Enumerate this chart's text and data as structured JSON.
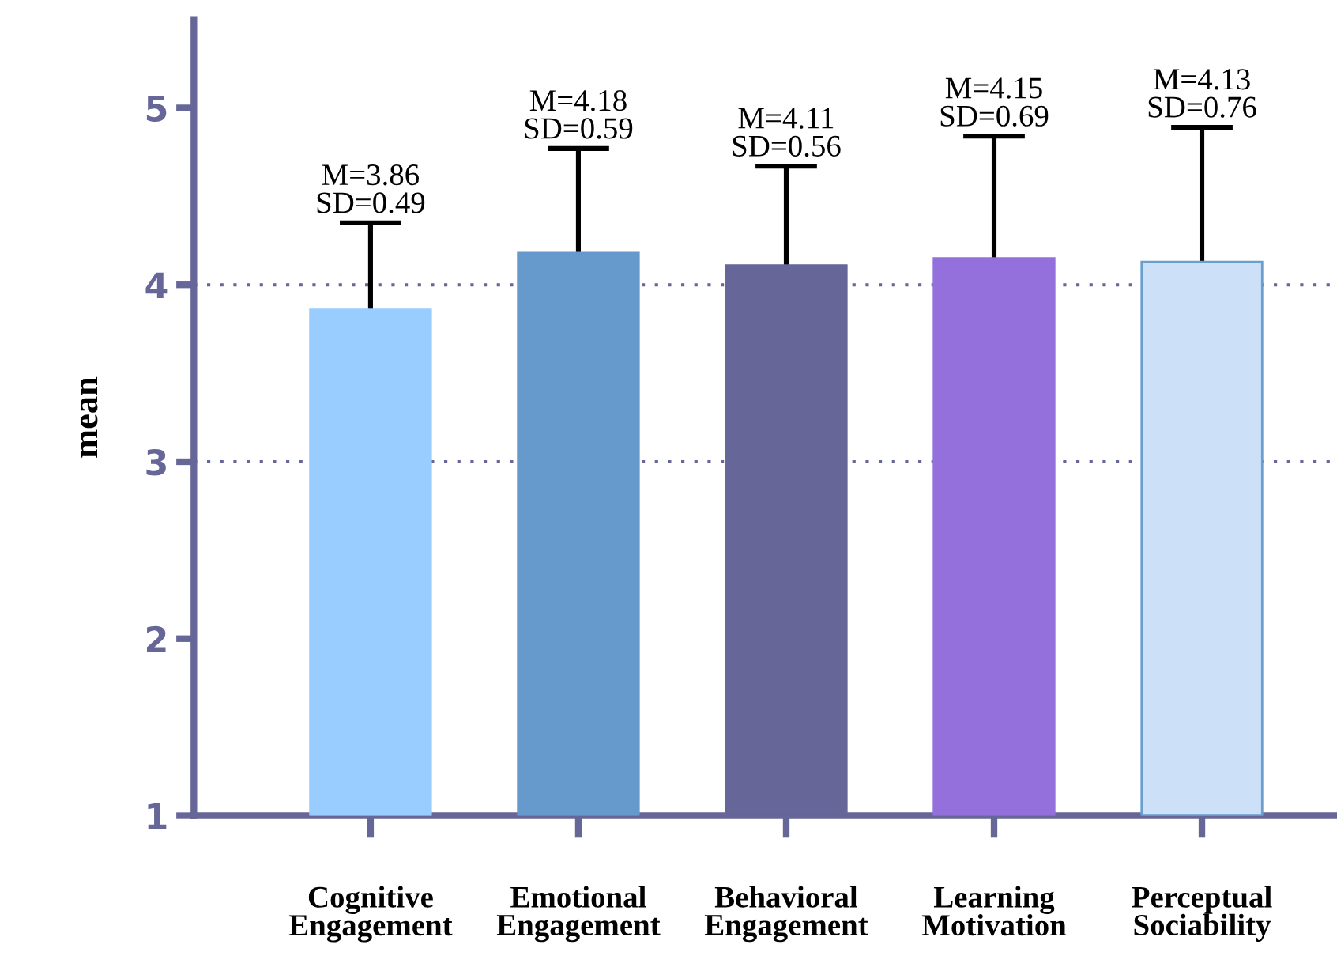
{
  "chart_data": {
    "type": "bar",
    "ylabel": "mean",
    "categories": [
      "Cognitive\nEngagement",
      "Emotional\nEngagement",
      "Behavioral\nEngagement",
      "Learning\nMotivation",
      "Perceptual\nSociability"
    ],
    "values": [
      3.86,
      4.18,
      4.11,
      4.15,
      4.13
    ],
    "errors": [
      0.49,
      0.59,
      0.56,
      0.69,
      0.76
    ],
    "annotations": [
      {
        "text": "M=3.86\nSD=0.49",
        "x": "Cognitive\nEngagement",
        "y": 4.35
      },
      {
        "text": "M=4.18\nSD=0.59",
        "x": "Emotional\nEngagement",
        "y": 4.77
      },
      {
        "text": "M=4.11\nSD=0.56",
        "x": "Behavioral\nEngagement",
        "y": 4.67
      },
      {
        "text": "M=4.15\nSD=0.69",
        "x": "Learning\nMotivation",
        "y": 4.84
      },
      {
        "text": "M=4.13\nSD=0.76",
        "x": "Perceptual\nSociability",
        "y": 4.89
      }
    ],
    "colors": [
      "#99ccff",
      "#6699cc",
      "#666699",
      "#9370db",
      "#cce0f7"
    ],
    "ylim": [
      1,
      5.5
    ],
    "yticks": [
      1,
      2,
      3,
      4,
      5
    ],
    "ref_lines": [
      {
        "axis": "y",
        "value": 3,
        "label": null,
        "color": "#666699",
        "line_style": "dotted"
      },
      {
        "axis": "y",
        "value": 4,
        "label": null,
        "color": "#666699",
        "line_style": "dotted"
      }
    ],
    "grid": false,
    "legend": false
  }
}
